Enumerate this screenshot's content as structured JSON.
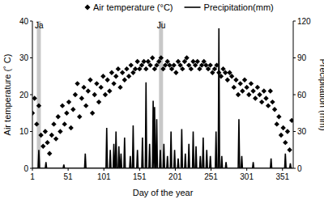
{
  "chart_data": {
    "type": "scatter",
    "x_label": "Day of the year",
    "y_label": "Air temperature (˚ C)",
    "y2_label": "Precipitation (mm)",
    "xlim": [
      1,
      366
    ],
    "xticks": [
      1,
      51,
      101,
      151,
      201,
      251,
      301,
      351
    ],
    "ylim": [
      0,
      40
    ],
    "yticks": [
      0,
      10,
      20,
      30,
      40
    ],
    "y2lim": [
      0,
      120
    ],
    "y2ticks": [
      0,
      30,
      60,
      90,
      120
    ],
    "legend": "top",
    "grid": false,
    "annotations": [
      {
        "label": "Ja",
        "x": 10
      },
      {
        "label": "Ju",
        "x": 181
      }
    ],
    "series": [
      {
        "name": "Air temperature (°C)",
        "type": "scatter",
        "marker": "diamond",
        "color": "#000000",
        "x": [
          1,
          4,
          7,
          10,
          13,
          16,
          19,
          22,
          25,
          28,
          31,
          34,
          37,
          40,
          43,
          46,
          49,
          52,
          55,
          58,
          61,
          64,
          67,
          70,
          73,
          76,
          79,
          82,
          85,
          88,
          91,
          94,
          97,
          100,
          103,
          106,
          109,
          112,
          115,
          118,
          121,
          124,
          127,
          130,
          133,
          136,
          139,
          142,
          145,
          148,
          151,
          154,
          157,
          160,
          163,
          166,
          169,
          172,
          175,
          178,
          181,
          184,
          187,
          190,
          193,
          196,
          199,
          202,
          205,
          208,
          211,
          214,
          217,
          220,
          223,
          226,
          229,
          232,
          235,
          238,
          241,
          244,
          247,
          250,
          253,
          256,
          259,
          262,
          265,
          268,
          271,
          274,
          277,
          280,
          283,
          286,
          289,
          292,
          295,
          298,
          301,
          304,
          307,
          310,
          313,
          316,
          319,
          322,
          325,
          328,
          331,
          334,
          337,
          340,
          343,
          346,
          349,
          352,
          355,
          358,
          361,
          364
        ],
        "values": [
          15,
          19,
          12,
          17,
          9,
          6,
          10,
          7,
          4,
          9,
          12,
          8,
          14,
          10,
          17,
          12,
          15,
          18,
          11,
          16,
          20,
          23,
          14,
          19,
          22,
          17,
          21,
          24,
          15,
          20,
          23,
          18,
          22,
          25,
          20,
          24,
          21,
          26,
          23,
          25,
          27,
          22,
          26,
          24,
          27,
          25,
          28,
          26,
          27,
          29,
          27,
          28,
          29,
          27,
          29,
          28,
          30,
          27,
          28,
          29,
          30,
          27,
          28,
          29,
          28,
          27,
          28,
          26,
          29,
          28,
          27,
          29,
          30,
          28,
          27,
          29,
          28,
          29,
          27,
          28,
          29,
          28,
          27,
          28,
          26,
          27,
          28,
          26,
          25,
          27,
          26,
          24,
          26,
          25,
          22,
          24,
          20,
          23,
          21,
          24,
          22,
          20,
          23,
          21,
          19,
          22,
          20,
          18,
          21,
          19,
          17,
          21,
          18,
          16,
          12,
          14,
          9,
          11,
          7,
          10,
          5,
          13
        ]
      },
      {
        "name": "Precipitation(mm)",
        "type": "line",
        "color": "#000000",
        "axis": "y2",
        "line_style": "solid",
        "x": [
          1,
          9,
          10,
          11,
          19,
          20,
          21,
          44,
          45,
          46,
          74,
          75,
          76,
          104,
          105,
          106,
          109,
          110,
          111,
          114,
          115,
          116,
          117,
          118,
          119,
          121,
          122,
          123,
          124,
          125,
          126,
          129,
          130,
          131,
          137,
          138,
          139,
          141,
          142,
          143,
          147,
          148,
          149,
          154,
          155,
          156,
          159,
          160,
          161,
          164,
          165,
          166,
          169,
          170,
          171,
          172,
          173,
          174,
          175,
          176,
          179,
          180,
          181,
          184,
          185,
          186,
          189,
          190,
          191,
          194,
          195,
          196,
          199,
          200,
          201,
          204,
          205,
          206,
          209,
          210,
          211,
          214,
          215,
          216,
          219,
          220,
          221,
          225,
          226,
          227,
          229,
          230,
          231,
          235,
          236,
          237,
          239,
          240,
          241,
          244,
          245,
          246,
          249,
          250,
          251,
          257,
          258,
          259,
          261,
          262,
          263,
          265,
          266,
          267,
          271,
          272,
          273,
          289,
          290,
          291,
          293,
          294,
          295,
          309,
          310,
          311,
          334,
          335,
          336,
          354,
          355,
          356,
          361,
          362,
          363,
          365
        ],
        "values": [
          0,
          0,
          15,
          0,
          0,
          5,
          0,
          0,
          3,
          0,
          0,
          12,
          0,
          0,
          33,
          0,
          0,
          15,
          0,
          0,
          20,
          0,
          0,
          30,
          0,
          0,
          18,
          0,
          0,
          12,
          0,
          0,
          25,
          0,
          0,
          10,
          0,
          0,
          35,
          0,
          0,
          15,
          0,
          0,
          25,
          0,
          0,
          70,
          0,
          0,
          20,
          0,
          0,
          55,
          0,
          50,
          0,
          0,
          40,
          0,
          0,
          15,
          0,
          0,
          20,
          0,
          0,
          10,
          0,
          0,
          30,
          0,
          0,
          15,
          0,
          0,
          8,
          0,
          0,
          32,
          0,
          0,
          12,
          0,
          0,
          20,
          0,
          0,
          30,
          0,
          0,
          18,
          0,
          0,
          10,
          0,
          0,
          25,
          0,
          0,
          15,
          0,
          0,
          10,
          0,
          0,
          30,
          0,
          0,
          114,
          0,
          0,
          10,
          0,
          0,
          5,
          0,
          0,
          40,
          0,
          0,
          10,
          0,
          0,
          5,
          0,
          0,
          8,
          0,
          0,
          12,
          0,
          0,
          4,
          0,
          0
        ]
      }
    ]
  }
}
